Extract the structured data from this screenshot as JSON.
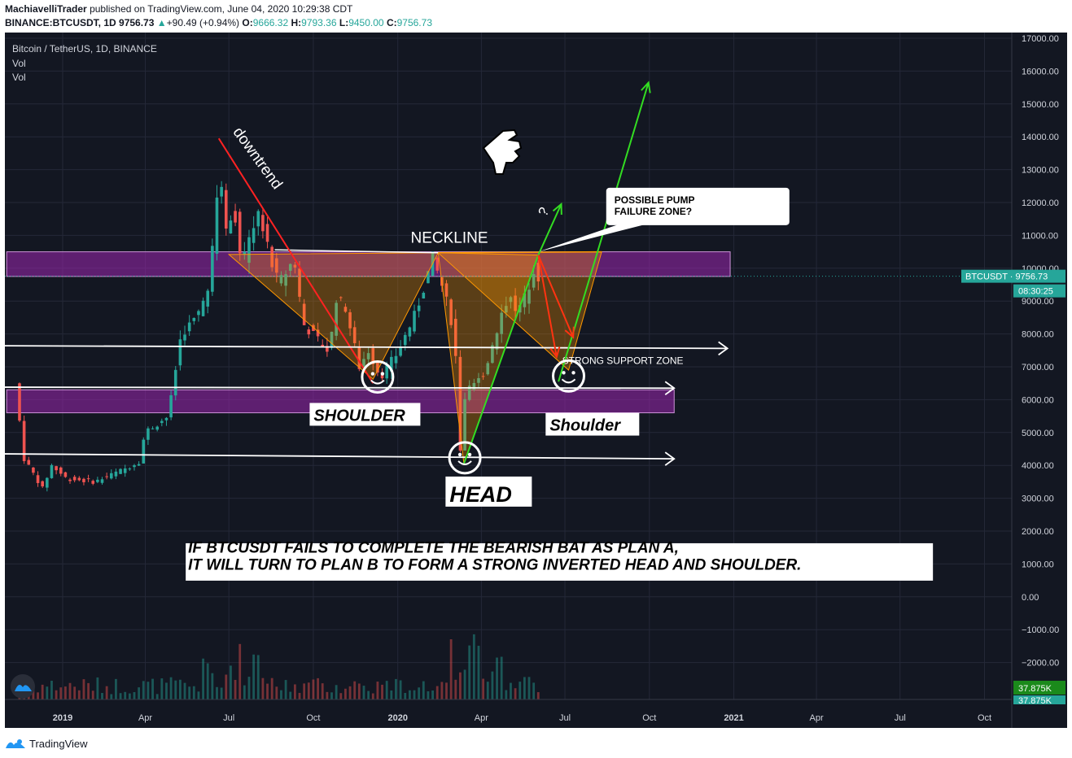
{
  "header": {
    "author": "MachiavelliTrader",
    "published": "published on TradingView.com, June 04, 2020 10:29:38 CDT",
    "symbol": "BINANCE:BTCUSDT, 1D",
    "last": "9756.73",
    "change_arrow": "▲",
    "change": "+90.49 (+0.94%)",
    "o_label": "O:",
    "o": "9666.32",
    "h_label": "H:",
    "h": "9793.36",
    "l_label": "L:",
    "l": "9450.00",
    "c_label": "C:",
    "c": "9756.73"
  },
  "legend": {
    "title": "Bitcoin / TetherUS, 1D, BINANCE",
    "vol1": "Vol",
    "vol2": "Vol"
  },
  "footer": {
    "brand": "TradingView"
  },
  "colors": {
    "up": "#26a69a",
    "down": "#ef5350",
    "zone": "#9c27b0",
    "pattern": "#ff9800",
    "arrow_green": "#33dd22",
    "arrow_red": "#ff3311",
    "background": "#131722"
  },
  "chart_data": {
    "type": "candlestick",
    "y_ticks": [
      17000,
      16000,
      15000,
      14000,
      13000,
      12000,
      11000,
      10000,
      9000,
      8000,
      7000,
      6000,
      5000,
      4000,
      3000,
      2000,
      1000,
      0,
      -1000,
      -2000
    ],
    "y_tick_labels": [
      "17000.00",
      "16000.00",
      "15000.00",
      "14000.00",
      "13000.00",
      "12000.00",
      "11000.00",
      "10000.00",
      "9000.00",
      "8000.00",
      "7000.00",
      "6000.00",
      "5000.00",
      "4000.00",
      "3000.00",
      "2000.00",
      "1000.00",
      "0.00",
      "−1000.00",
      "−2000.00"
    ],
    "x_ticks": [
      {
        "label": "2019",
        "date": "2019-01-01",
        "bold": true
      },
      {
        "label": "Apr",
        "date": "2019-04-01"
      },
      {
        "label": "Jul",
        "date": "2019-07-01"
      },
      {
        "label": "Oct",
        "date": "2019-10-01"
      },
      {
        "label": "2020",
        "date": "2020-01-01",
        "bold": true
      },
      {
        "label": "Apr",
        "date": "2020-04-01"
      },
      {
        "label": "Jul",
        "date": "2020-07-01"
      },
      {
        "label": "Oct",
        "date": "2020-10-01"
      },
      {
        "label": "2021",
        "date": "2021-01-01",
        "bold": true
      },
      {
        "label": "Apr",
        "date": "2021-04-01"
      },
      {
        "label": "Jul",
        "date": "2021-07-01"
      },
      {
        "label": "Oct",
        "date": "2021-10-01"
      }
    ],
    "price_path": [
      [
        "2018-11-15",
        6500
      ],
      [
        "2018-11-25",
        4200
      ],
      [
        "2018-12-15",
        3300
      ],
      [
        "2018-12-25",
        4000
      ],
      [
        "2019-01-10",
        3600
      ],
      [
        "2019-02-10",
        3500
      ],
      [
        "2019-03-15",
        3900
      ],
      [
        "2019-04-01",
        4150
      ],
      [
        "2019-04-05",
        5000
      ],
      [
        "2019-05-01",
        5500
      ],
      [
        "2019-05-15",
        8000
      ],
      [
        "2019-06-01",
        8500
      ],
      [
        "2019-06-15",
        9500
      ],
      [
        "2019-06-26",
        13200
      ],
      [
        "2019-07-05",
        10500
      ],
      [
        "2019-07-10",
        12300
      ],
      [
        "2019-07-20",
        10000
      ],
      [
        "2019-08-06",
        11800
      ],
      [
        "2019-08-29",
        9500
      ],
      [
        "2019-09-15",
        10300
      ],
      [
        "2019-09-25",
        8300
      ],
      [
        "2019-10-25",
        7400
      ],
      [
        "2019-10-28",
        9200
      ],
      [
        "2019-11-10",
        8800
      ],
      [
        "2019-11-25",
        7000
      ],
      [
        "2019-12-05",
        7500
      ],
      [
        "2019-12-18",
        6700
      ],
      [
        "2020-01-05",
        7400
      ],
      [
        "2020-01-25",
        8600
      ],
      [
        "2020-02-13",
        10300
      ],
      [
        "2020-02-25",
        9300
      ],
      [
        "2020-03-08",
        8000
      ],
      [
        "2020-03-12",
        5000
      ],
      [
        "2020-03-13",
        4200
      ],
      [
        "2020-03-20",
        6200
      ],
      [
        "2020-04-01",
        6500
      ],
      [
        "2020-04-10",
        6900
      ],
      [
        "2020-04-30",
        8800
      ],
      [
        "2020-05-10",
        9400
      ],
      [
        "2020-05-13",
        8600
      ],
      [
        "2020-05-25",
        9200
      ],
      [
        "2020-06-02",
        10000
      ],
      [
        "2020-06-04",
        9756
      ]
    ],
    "current_price": 9756.73,
    "price_label": "BTCUSDT · 9756.73",
    "countdown": "08:30:25",
    "volume_labels": [
      "37.875K",
      "37.875K"
    ],
    "zones": [
      {
        "from": "2018-11-01",
        "to": "2020-12-28",
        "low": 9750,
        "high": 10500
      },
      {
        "from": "2018-11-01",
        "to": "2020-10-28",
        "low": 5600,
        "high": 6300
      }
    ],
    "annotations": {
      "downtrend": "downtrend",
      "neckline": "NECKLINE",
      "question": "?",
      "strong_support": "STRONG SUPPORT ZONE",
      "pump_failure_line1": "POSSIBLE  PUMP",
      "pump_failure_line2": "FAILURE ZONE?",
      "shoulder_left": "SHOULDER",
      "shoulder_right": "Shoulder",
      "head": "HEAD",
      "plan_line1": "IF BTCUSDT FAILS TO COMPLETE THE BEARISH BAT AS PLAN A,",
      "plan_line2": "IT WILL TURN TO PLAN B TO FORM A STRONG INVERTED HEAD AND SHOULDER."
    }
  }
}
